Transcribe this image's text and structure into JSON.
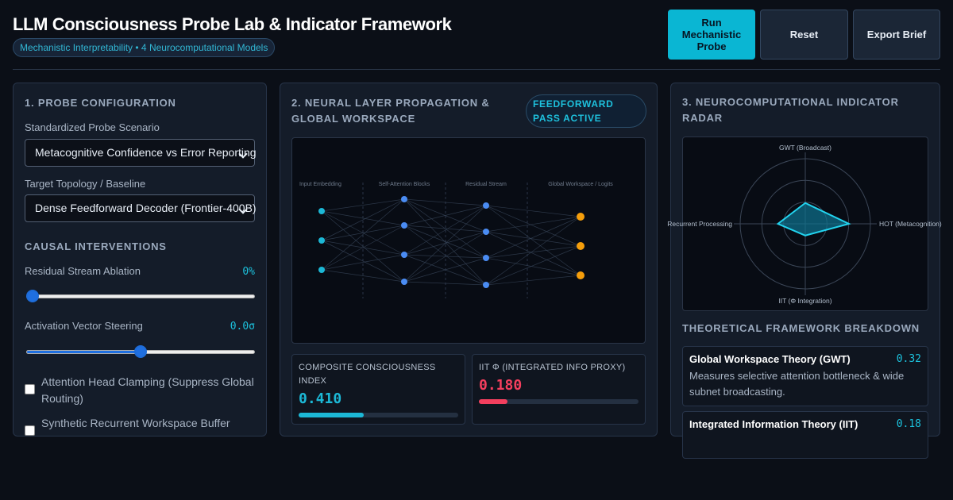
{
  "header": {
    "title": "LLM Consciousness Probe Lab & Indicator Framework",
    "subtitle": "Mechanistic Interpretability • 4 Neurocomputational Models",
    "buttons": {
      "run": "Run Mechanistic Probe",
      "reset": "Reset",
      "export": "Export Brief"
    }
  },
  "config": {
    "title": "1. Probe Configuration",
    "scenario_label": "Standardized Probe Scenario",
    "scenario_value": "Metacognitive Confidence vs Error Reporting",
    "topology_label": "Target Topology / Baseline",
    "topology_value": "Dense Feedforward Decoder (Frontier-400B)",
    "interventions_title": "Causal Interventions",
    "ablation_label": "Residual Stream Ablation",
    "ablation_value": "0%",
    "ablation_level": 0,
    "steering_label": "Activation Vector Steering",
    "steering_value": "0.0σ",
    "steering_level": 0.5,
    "checkboxes": [
      {
        "label": "Attention Head Clamping (Suppress Global Routing)",
        "checked": false
      },
      {
        "label": "Synthetic Recurrent Workspace Buffer",
        "checked": false
      }
    ]
  },
  "propagation": {
    "title": "2. Neural Layer Propagation & Global Workspace",
    "badge": "Feedforward Pass Active",
    "layers": [
      "Input Embedding",
      "Self-Attention Blocks",
      "Residual Stream",
      "Global Workspace / Logits"
    ],
    "metrics": [
      {
        "label": "Composite Consciousness Index",
        "value": "0.410",
        "level": 0.41,
        "color": "#1cb8d6"
      },
      {
        "label": "IIT Φ (Integrated Info Proxy)",
        "value": "0.180",
        "level": 0.18,
        "color": "#f43f5e"
      }
    ]
  },
  "radar": {
    "title": "3. Neurocomputational Indicator Radar",
    "axes": [
      "GWT (Broadcast)",
      "HOT (Metacognition)",
      "IIT (Φ Integration)",
      "Recurrent Processing"
    ],
    "values": [
      0.32,
      0.67,
      0.18,
      0.42
    ],
    "fill_color": "#0e7490",
    "stroke_color": "#22d3ee"
  },
  "frameworks": {
    "title": "Theoretical Framework Breakdown",
    "items": [
      {
        "name": "Global Workspace Theory (GWT)",
        "score": "0.32",
        "description": "Measures selective attention bottleneck & wide subnet broadcasting."
      },
      {
        "name": "Integrated Information Theory (IIT)",
        "score": "0.18",
        "description": ""
      }
    ]
  }
}
